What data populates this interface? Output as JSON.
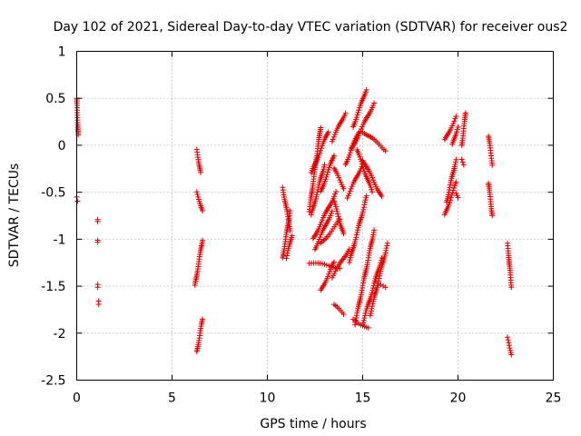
{
  "chart_data": {
    "type": "scatter",
    "title": "Day 102 of 2021, Sidereal Day-to-day VTEC variation (SDTVAR) for receiver ous2",
    "xlabel": "GPS time / hours",
    "ylabel": "SDTVAR / TECUs",
    "xlim": [
      0,
      25
    ],
    "ylim": [
      -2.5,
      1
    ],
    "xticks": [
      0,
      5,
      10,
      15,
      20,
      25
    ],
    "yticks": [
      -2.5,
      -2,
      -1.5,
      -1,
      -0.5,
      0,
      0.5,
      1
    ],
    "xtick_labels": [
      "0",
      "5",
      "10",
      "15",
      "20",
      "25"
    ],
    "ytick_labels": [
      "-2.5",
      "-2",
      "-1.5",
      "-1",
      "-0.5",
      "0",
      "0.5",
      "1"
    ],
    "grid": true,
    "marker": "plus",
    "marker_color": "#e00000",
    "series": [
      {
        "name": "SDTVAR",
        "segments": [
          {
            "x": [
              0.0,
              0.08
            ],
            "y": [
              0.5,
              0.1
            ]
          },
          {
            "x": [
              0.0,
              0.05
            ],
            "y": [
              -0.55,
              -0.6
            ]
          },
          {
            "x": [
              1.1,
              1.1
            ],
            "y": [
              -0.78,
              -0.8
            ]
          },
          {
            "x": [
              1.1,
              1.1
            ],
            "y": [
              -1.0,
              -1.02
            ]
          },
          {
            "x": [
              1.1,
              1.1
            ],
            "y": [
              -1.47,
              -1.5
            ]
          },
          {
            "x": [
              1.15,
              1.15
            ],
            "y": [
              -1.67,
              -1.7
            ]
          },
          {
            "x": [
              6.3,
              6.5
            ],
            "y": [
              -0.05,
              -0.3
            ]
          },
          {
            "x": [
              6.3,
              6.6
            ],
            "y": [
              -0.5,
              -0.7
            ]
          },
          {
            "x": [
              6.2,
              6.6
            ],
            "y": [
              -1.5,
              -1.0
            ]
          },
          {
            "x": [
              6.3,
              6.6
            ],
            "y": [
              -2.2,
              -1.85
            ]
          },
          {
            "x": [
              10.8,
              11.2
            ],
            "y": [
              -0.45,
              -0.9
            ]
          },
          {
            "x": [
              10.8,
              11.2
            ],
            "y": [
              -1.2,
              -0.7
            ]
          },
          {
            "x": [
              11.0,
              11.3
            ],
            "y": [
              -1.2,
              -0.95
            ]
          },
          {
            "x": [
              12.2,
              12.8
            ],
            "y": [
              -0.7,
              0.2
            ]
          },
          {
            "x": [
              12.3,
              13.2
            ],
            "y": [
              -0.3,
              0.15
            ]
          },
          {
            "x": [
              12.3,
              13.0
            ],
            "y": [
              -0.75,
              -0.2
            ]
          },
          {
            "x": [
              12.5,
              13.4
            ],
            "y": [
              -1.1,
              -0.7
            ]
          },
          {
            "x": [
              12.4,
              13.6
            ],
            "y": [
              -1.0,
              -0.5
            ]
          },
          {
            "x": [
              12.8,
              13.5
            ],
            "y": [
              -0.5,
              -0.1
            ]
          },
          {
            "x": [
              12.8,
              13.8
            ],
            "y": [
              -1.05,
              -0.8
            ]
          },
          {
            "x": [
              12.2,
              13.8
            ],
            "y": [
              -1.25,
              -1.3
            ]
          },
          {
            "x": [
              12.8,
              13.5
            ],
            "y": [
              -1.55,
              -1.25
            ]
          },
          {
            "x": [
              13.4,
              14.3
            ],
            "y": [
              -1.4,
              -1.1
            ]
          },
          {
            "x": [
              13.4,
              14.1
            ],
            "y": [
              0.05,
              0.35
            ]
          },
          {
            "x": [
              13.5,
              14.0
            ],
            "y": [
              -0.25,
              -0.45
            ]
          },
          {
            "x": [
              13.5,
              14.0
            ],
            "y": [
              -0.6,
              -0.95
            ]
          },
          {
            "x": [
              13.5,
              14.0
            ],
            "y": [
              -1.7,
              -1.8
            ]
          },
          {
            "x": [
              14.1,
              14.8
            ],
            "y": [
              -0.2,
              0.15
            ]
          },
          {
            "x": [
              14.2,
              15.0
            ],
            "y": [
              -0.55,
              -0.2
            ]
          },
          {
            "x": [
              14.4,
              15.6
            ],
            "y": [
              -0.05,
              0.45
            ]
          },
          {
            "x": [
              14.5,
              15.2
            ],
            "y": [
              0.2,
              0.6
            ]
          },
          {
            "x": [
              14.7,
              15.5
            ],
            "y": [
              -0.05,
              -0.5
            ]
          },
          {
            "x": [
              15.0,
              16.2
            ],
            "y": [
              0.15,
              -0.05
            ]
          },
          {
            "x": [
              15.0,
              16.0
            ],
            "y": [
              -0.15,
              -0.55
            ]
          },
          {
            "x": [
              14.3,
              15.2
            ],
            "y": [
              -1.25,
              -0.55
            ]
          },
          {
            "x": [
              14.6,
              15.6
            ],
            "y": [
              -1.9,
              -0.9
            ]
          },
          {
            "x": [
              14.5,
              15.3
            ],
            "y": [
              -1.85,
              -1.95
            ]
          },
          {
            "x": [
              15.0,
              16.0
            ],
            "y": [
              -1.9,
              -1.2
            ]
          },
          {
            "x": [
              15.4,
              16.3
            ],
            "y": [
              -1.8,
              -1.05
            ]
          },
          {
            "x": [
              15.7,
              16.2
            ],
            "y": [
              -1.45,
              -1.5
            ]
          },
          {
            "x": [
              19.3,
              19.9
            ],
            "y": [
              0.05,
              0.3
            ]
          },
          {
            "x": [
              19.3,
              19.9
            ],
            "y": [
              -0.75,
              -0.4
            ]
          },
          {
            "x": [
              19.4,
              19.9
            ],
            "y": [
              -0.6,
              -0.15
            ]
          },
          {
            "x": [
              19.7,
              20.0
            ],
            "y": [
              0.0,
              0.2
            ]
          },
          {
            "x": [
              19.9,
              20.0
            ],
            "y": [
              -0.5,
              -0.55
            ]
          },
          {
            "x": [
              20.2,
              20.4
            ],
            "y": [
              0.0,
              0.35
            ]
          },
          {
            "x": [
              20.2,
              20.3
            ],
            "y": [
              -0.15,
              -0.2
            ]
          },
          {
            "x": [
              21.6,
              21.8
            ],
            "y": [
              0.1,
              -0.2
            ]
          },
          {
            "x": [
              21.6,
              21.8
            ],
            "y": [
              -0.4,
              -0.75
            ]
          },
          {
            "x": [
              22.6,
              22.8
            ],
            "y": [
              -1.05,
              -1.5
            ]
          },
          {
            "x": [
              22.6,
              22.8
            ],
            "y": [
              -2.05,
              -2.22
            ]
          }
        ]
      }
    ]
  }
}
